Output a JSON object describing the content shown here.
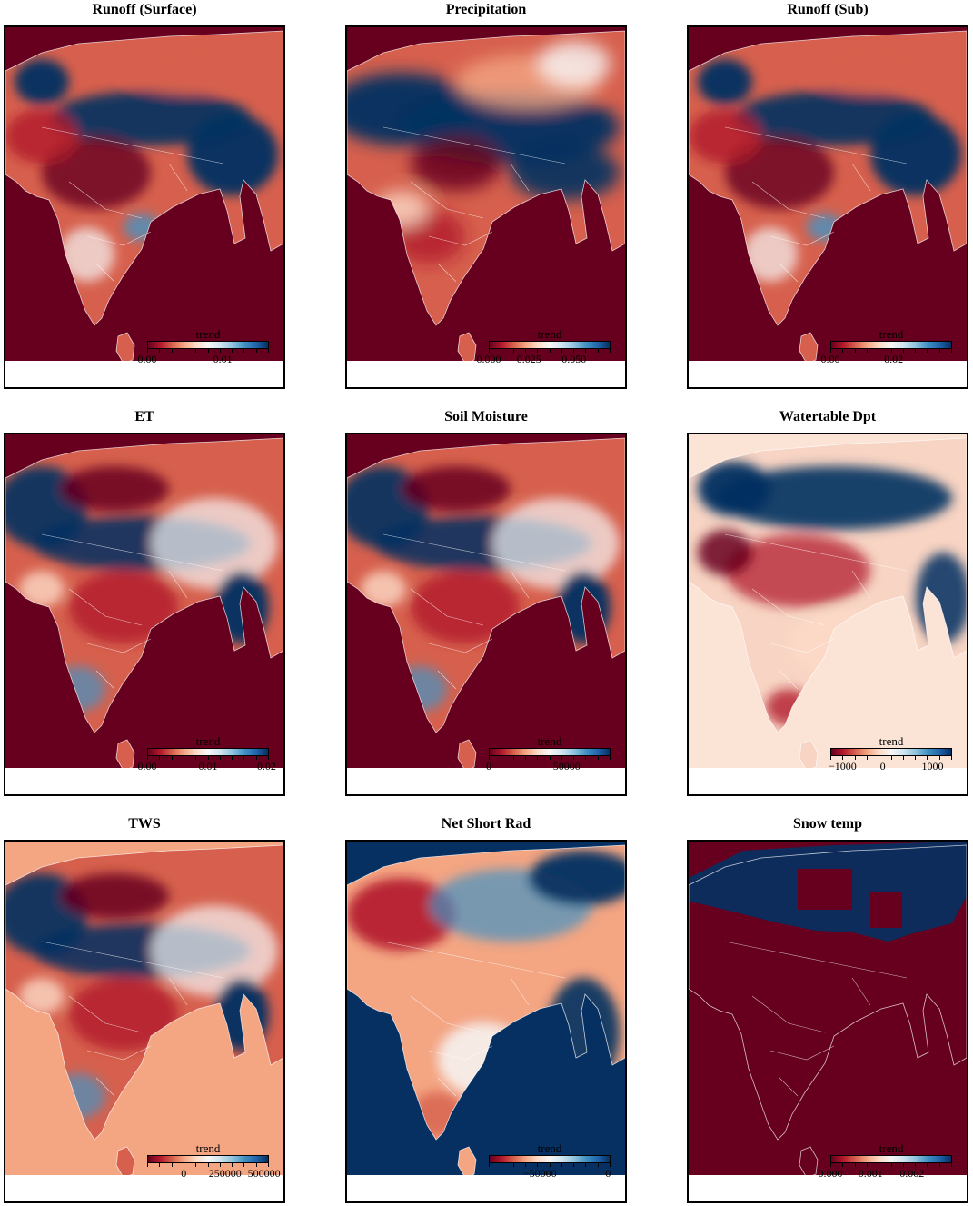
{
  "figure": {
    "panels": [
      {
        "id": "runoff-surface",
        "title": "Runoff (Surface)",
        "colorbar": {
          "label": "trend",
          "ticks": [
            "0.00",
            "0.01"
          ],
          "tick_pos": [
            0.0,
            0.62
          ]
        },
        "ocean": "#67001f",
        "mode": "normal"
      },
      {
        "id": "precipitation",
        "title": "Precipitation",
        "colorbar": {
          "label": "trend",
          "ticks": [
            "0.000",
            "0.025",
            "0.050"
          ],
          "tick_pos": [
            0.0,
            0.33,
            0.7
          ]
        },
        "ocean": "#67001f",
        "mode": "smooth"
      },
      {
        "id": "runoff-sub",
        "title": "Runoff (Sub)",
        "colorbar": {
          "label": "trend",
          "ticks": [
            "0.00",
            "0.02"
          ],
          "tick_pos": [
            0.0,
            0.52
          ]
        },
        "ocean": "#67001f",
        "mode": "normal"
      },
      {
        "id": "et",
        "title": "ET",
        "colorbar": {
          "label": "trend",
          "ticks": [
            "0.00",
            "0.01",
            "0.02"
          ],
          "tick_pos": [
            0.0,
            0.5,
            0.98
          ]
        },
        "ocean": "#67001f",
        "mode": "noisy"
      },
      {
        "id": "soil-moisture",
        "title": "Soil Moisture",
        "colorbar": {
          "label": "trend",
          "ticks": [
            "0",
            "50000"
          ],
          "tick_pos": [
            0.0,
            0.64
          ]
        },
        "ocean": "#67001f",
        "mode": "noisy"
      },
      {
        "id": "watertable-dpt",
        "title": "Watertable Dpt",
        "colorbar": {
          "label": "trend",
          "ticks": [
            "−1000",
            "0",
            "1000"
          ],
          "tick_pos": [
            0.1,
            0.43,
            0.84
          ]
        },
        "ocean": "#fbe3d6",
        "mode": "pale"
      },
      {
        "id": "tws",
        "title": "TWS",
        "colorbar": {
          "label": "trend",
          "ticks": [
            "0",
            "250000",
            "500000"
          ],
          "tick_pos": [
            0.3,
            0.64,
            0.96
          ]
        },
        "ocean": "#f4a582",
        "mode": "noisy"
      },
      {
        "id": "net-short-rad",
        "title": "Net Short Rad",
        "colorbar": {
          "label": "trend",
          "ticks": [
            "−50000",
            "0"
          ],
          "tick_pos": [
            0.42,
            0.98
          ]
        },
        "ocean": "#053061",
        "mode": "inverse"
      },
      {
        "id": "snow-temp",
        "title": "Snow temp",
        "colorbar": {
          "label": "trend",
          "ticks": [
            "0.000",
            "0.001",
            "0.002"
          ],
          "tick_pos": [
            0.0,
            0.33,
            0.67
          ]
        },
        "ocean": "#67001f",
        "mode": "snow"
      }
    ],
    "colormap": [
      "#67001f",
      "#b2182b",
      "#d6604d",
      "#f4a582",
      "#fddbc7",
      "#f7f7f7",
      "#d1e5f0",
      "#92c5de",
      "#4393c3",
      "#2166ac",
      "#053061"
    ]
  },
  "chart_data": {
    "type": "heatmap",
    "description_of_layout": "3x3 grid of spatial trend maps over South Asia",
    "panels": [
      {
        "title": "Runoff (Surface)",
        "colorbar_label": "trend",
        "colorbar_ticks": [
          0.0,
          0.01
        ]
      },
      {
        "title": "Precipitation",
        "colorbar_label": "trend",
        "colorbar_ticks": [
          0.0,
          0.025,
          0.05
        ]
      },
      {
        "title": "Runoff (Sub)",
        "colorbar_label": "trend",
        "colorbar_ticks": [
          0.0,
          0.02
        ]
      },
      {
        "title": "ET",
        "colorbar_label": "trend",
        "colorbar_ticks": [
          0.0,
          0.01,
          0.02
        ]
      },
      {
        "title": "Soil Moisture",
        "colorbar_label": "trend",
        "colorbar_ticks": [
          0,
          50000
        ]
      },
      {
        "title": "Watertable Dpt",
        "colorbar_label": "trend",
        "colorbar_ticks": [
          -1000,
          0,
          1000
        ]
      },
      {
        "title": "TWS",
        "colorbar_label": "trend",
        "colorbar_ticks": [
          0,
          250000,
          500000
        ]
      },
      {
        "title": "Net Short Rad",
        "colorbar_label": "trend",
        "colorbar_ticks": [
          -50000,
          0
        ]
      },
      {
        "title": "Snow temp",
        "colorbar_label": "trend",
        "colorbar_ticks": [
          0.0,
          0.001,
          0.002
        ]
      }
    ]
  }
}
